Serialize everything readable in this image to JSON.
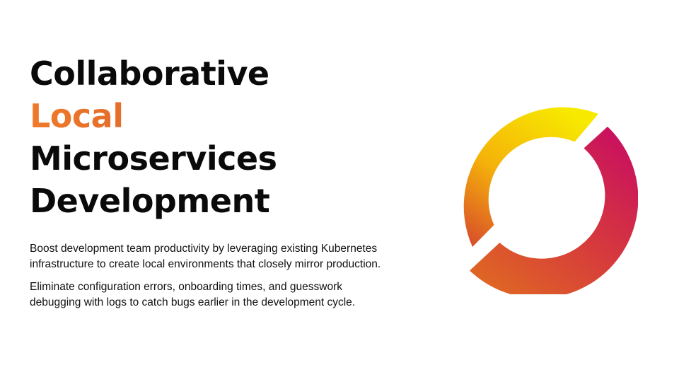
{
  "headline": {
    "line1": "Collaborative",
    "line2_accent": "Local",
    "line3": "Microservices",
    "line4": "Development"
  },
  "body": {
    "paragraph1": "Boost development team productivity by leveraging existing Kubernetes infrastructure to create local environments that closely mirror production.",
    "paragraph2": "Eliminate configuration errors, onboarding times, and guesswork debugging with logs to catch bugs earlier in the development cycle."
  },
  "graphic": {
    "name": "ring-logo-icon",
    "colors": {
      "yellow": "#f7ea00",
      "orange": "#e8702a",
      "red_orange": "#d4502a",
      "magenta": "#cc1060"
    }
  }
}
